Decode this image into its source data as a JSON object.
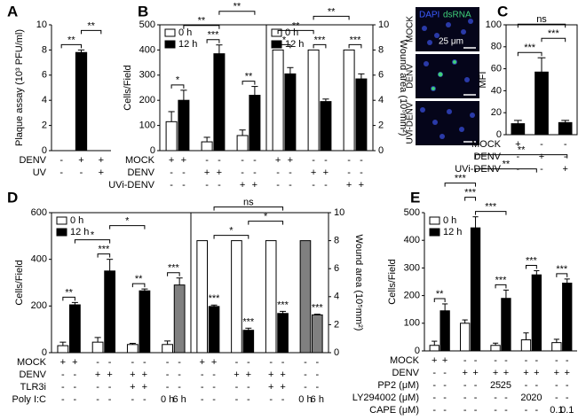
{
  "chart_data": [
    {
      "panel": "A",
      "type": "bar",
      "y_label": "Plaque assay (10³ PFU/ml)",
      "ylim": [
        0,
        10
      ],
      "yticks": [
        0,
        2,
        4,
        6,
        8,
        10
      ],
      "series": [
        {
          "color": "#000000",
          "values": [
            0,
            7.8,
            0
          ],
          "errors": [
            0,
            0.2,
            0
          ]
        }
      ],
      "conditions": [
        {
          "name": "DENV",
          "marks": [
            "-",
            "+",
            "+"
          ]
        },
        {
          "name": "UV",
          "marks": [
            "-",
            "-",
            "+"
          ]
        }
      ],
      "brackets": [
        {
          "text": "**",
          "between": [
            0,
            1
          ]
        },
        {
          "text": "**",
          "between": [
            1,
            2
          ]
        }
      ]
    },
    {
      "panel": "B",
      "type": "bar",
      "y_label": "Cells/Field",
      "ylim": [
        0,
        500
      ],
      "yticks": [
        0,
        100,
        200,
        300,
        400,
        500
      ],
      "frame": true,
      "legend": "upper left",
      "series": [
        {
          "name": "0 h",
          "color": "#ffffff",
          "values": [
            115,
            35,
            60
          ],
          "errors": [
            40,
            18,
            22
          ]
        },
        {
          "name": "12 h",
          "color": "#000000",
          "values": [
            200,
            385,
            220
          ],
          "errors": [
            40,
            35,
            35
          ]
        }
      ],
      "conditions": [
        {
          "name": "MOCK",
          "marks": [
            "+",
            "+",
            "-",
            "-",
            "-",
            "-"
          ]
        },
        {
          "name": "DENV",
          "marks": [
            "-",
            "-",
            "+",
            "+",
            "-",
            "-"
          ]
        },
        {
          "name": "UVi-DENV",
          "marks": [
            "-",
            "-",
            "-",
            "-",
            "+",
            "+"
          ]
        }
      ],
      "brackets": [
        {
          "text": "*",
          "between": [
            0,
            1
          ]
        },
        {
          "text": "***",
          "between": [
            2,
            3
          ]
        },
        {
          "text": "**",
          "between": [
            4,
            5
          ]
        },
        {
          "text": "**",
          "between": [
            1,
            3
          ]
        },
        {
          "text": "**",
          "between": [
            3,
            5
          ]
        }
      ]
    },
    {
      "type": "bar",
      "y_label": "Wound area (10⁵mm²)",
      "axis_side": "right",
      "ylim": [
        0,
        10
      ],
      "yticks": [
        0,
        2,
        4,
        6,
        8,
        10
      ],
      "frame": true,
      "legend": "upper left",
      "series": [
        {
          "name": "0 h",
          "color": "#ffffff",
          "values": [
            8,
            8,
            8
          ]
        },
        {
          "name": "12 h",
          "color": "#000000",
          "values": [
            6.1,
            3.9,
            5.7
          ],
          "errors": [
            0.5,
            0.2,
            0.4
          ]
        }
      ],
      "conditions": [
        {
          "marks": [
            "+",
            "+",
            "-",
            "-",
            "-",
            "-"
          ]
        },
        {
          "marks": [
            "-",
            "-",
            "+",
            "+",
            "-",
            "-"
          ]
        },
        {
          "marks": [
            "-",
            "-",
            "-",
            "-",
            "+",
            "+"
          ]
        }
      ],
      "brackets": [
        {
          "text": "*",
          "between": [
            0,
            1
          ]
        },
        {
          "text": "***",
          "between": [
            2,
            3
          ]
        },
        {
          "text": "***",
          "between": [
            4,
            5
          ]
        },
        {
          "text": "**",
          "between": [
            0,
            2
          ]
        },
        {
          "text": "**",
          "between": [
            2,
            4
          ]
        }
      ]
    },
    {
      "panel": "C",
      "type": "bar",
      "y_label": "MFI",
      "ylim": [
        0,
        100
      ],
      "yticks": [
        0,
        20,
        40,
        60,
        80,
        100
      ],
      "frame": true,
      "image_channels": [
        "DAPI",
        "dsRNA"
      ],
      "image_rows": [
        "MOCK",
        "DENV",
        "UVi-DENV"
      ],
      "scale_bar": "25 μm",
      "series": [
        {
          "color": "#000000",
          "values": [
            10,
            57,
            11
          ],
          "errors": [
            3,
            13,
            2
          ]
        }
      ],
      "conditions": [
        {
          "name": "MOCK",
          "marks": [
            "+",
            "-",
            "-"
          ]
        },
        {
          "name": "DENV",
          "marks": [
            "-",
            "+",
            "-"
          ]
        },
        {
          "name": "UVi-DENV",
          "marks": [
            "-",
            "-",
            "+"
          ]
        }
      ],
      "brackets": [
        {
          "text": "***",
          "between": [
            0,
            1
          ]
        },
        {
          "text": "***",
          "between": [
            1,
            2
          ]
        },
        {
          "text": "ns",
          "between": [
            0,
            2
          ]
        }
      ]
    },
    {
      "panel": "D",
      "type": "bar",
      "y_label": "Cells/Field",
      "ylim": [
        0,
        600
      ],
      "yticks": [
        0,
        200,
        400,
        600
      ],
      "frame": true,
      "legend": "upper left",
      "series": [
        {
          "name": "0 h",
          "color": "#ffffff",
          "values": [
            30,
            45,
            35,
            35
          ],
          "errors": [
            15,
            20,
            5,
            15
          ]
        },
        {
          "name": "12 h",
          "color": "#000000",
          "colors": [
            "#000000",
            "#000000",
            "#000000",
            "#808080"
          ],
          "values": [
            205,
            350,
            265,
            290
          ],
          "errors": [
            10,
            50,
            8,
            30
          ]
        }
      ],
      "conditions": [
        {
          "name": "MOCK",
          "marks": [
            "+",
            "+",
            "-",
            "-",
            "-",
            "-",
            "-",
            "-"
          ]
        },
        {
          "name": "DENV",
          "marks": [
            "-",
            "-",
            "+",
            "+",
            "+",
            "+",
            "-",
            "-"
          ]
        },
        {
          "name": "TLR3i",
          "marks": [
            "-",
            "-",
            "-",
            "-",
            "+",
            "+",
            "-",
            "-"
          ]
        },
        {
          "name": "Poly I:C",
          "marks": [
            "-",
            "-",
            "-",
            "-",
            "-",
            "-",
            "0 h",
            "6 h"
          ]
        }
      ],
      "brackets": [
        {
          "text": "**",
          "between": [
            0,
            1
          ]
        },
        {
          "text": "***",
          "between": [
            2,
            3
          ]
        },
        {
          "text": "**",
          "between": [
            4,
            5
          ]
        },
        {
          "text": "***",
          "between": [
            6,
            7
          ]
        },
        {
          "text": "*",
          "between": [
            1,
            3
          ]
        },
        {
          "text": "*",
          "between": [
            3,
            5
          ]
        }
      ]
    },
    {
      "type": "bar",
      "y_label": "Wound area (10⁵mm²)",
      "axis_side": "right",
      "ylim": [
        0,
        10
      ],
      "yticks": [
        0,
        2,
        4,
        6,
        8,
        10
      ],
      "frame": true,
      "series": [
        {
          "color": "#ffffff",
          "colors": [
            "#ffffff",
            "#ffffff",
            "#ffffff",
            "#808080"
          ],
          "values": [
            8,
            8,
            8,
            8
          ]
        },
        {
          "color": "#000000",
          "colors": [
            "#000000",
            "#000000",
            "#000000",
            "#808080"
          ],
          "values": [
            3.3,
            1.6,
            2.8,
            2.7
          ],
          "errors": [
            0.1,
            0.15,
            0.15,
            0.05
          ]
        }
      ],
      "conditions": [
        {
          "marks": [
            "+",
            "+",
            "-",
            "-",
            "-",
            "-",
            "-",
            "-"
          ]
        },
        {
          "marks": [
            "-",
            "-",
            "+",
            "+",
            "+",
            "+",
            "-",
            "-"
          ]
        },
        {
          "marks": [
            "-",
            "-",
            "-",
            "-",
            "+",
            "+",
            "-",
            "-"
          ]
        },
        {
          "marks": [
            "-",
            "-",
            "-",
            "-",
            "-",
            "-",
            "0 h",
            "6 h"
          ]
        }
      ],
      "brackets": [
        {
          "text": "***",
          "between": [
            1,
            1
          ]
        },
        {
          "text": "***",
          "between": [
            3,
            3
          ]
        },
        {
          "text": "***",
          "between": [
            5,
            5
          ]
        },
        {
          "text": "***",
          "between": [
            7,
            7
          ]
        },
        {
          "text": "*",
          "between": [
            1,
            3
          ]
        },
        {
          "text": "*",
          "between": [
            3,
            5
          ]
        },
        {
          "text": "ns",
          "between": [
            1,
            5
          ]
        }
      ]
    },
    {
      "panel": "E",
      "type": "bar",
      "y_label": "Cells/Field",
      "ylim": [
        0,
        500
      ],
      "yticks": [
        0,
        100,
        200,
        300,
        400,
        500
      ],
      "legend": "upper left",
      "series": [
        {
          "name": "0 h",
          "color": "#ffffff",
          "values": [
            20,
            100,
            20,
            40,
            30
          ],
          "errors": [
            15,
            12,
            8,
            25,
            12
          ]
        },
        {
          "name": "12 h",
          "color": "#000000",
          "values": [
            145,
            445,
            190,
            275,
            245
          ],
          "errors": [
            25,
            40,
            30,
            15,
            15
          ]
        }
      ],
      "conditions": [
        {
          "name": "MOCK",
          "marks": [
            "+",
            "+",
            "-",
            "-",
            "-",
            "-",
            "-",
            "-",
            "-",
            "-"
          ]
        },
        {
          "name": "DENV",
          "marks": [
            "-",
            "-",
            "+",
            "+",
            "+",
            "+",
            "+",
            "+",
            "+",
            "+"
          ]
        },
        {
          "name": "PP2 (μM)",
          "marks": [
            "-",
            "-",
            "-",
            "-",
            "25",
            "25",
            "-",
            "-",
            "-",
            "-"
          ]
        },
        {
          "name": "LY294002 (μM)",
          "marks": [
            "-",
            "-",
            "-",
            "-",
            "-",
            "-",
            "20",
            "20",
            "-",
            "-"
          ]
        },
        {
          "name": "CAPE (μM)",
          "marks": [
            "-",
            "-",
            "-",
            "-",
            "-",
            "-",
            "-",
            "-",
            "0.1",
            "0.1"
          ]
        }
      ],
      "brackets": [
        {
          "text": "**",
          "between": [
            0,
            1
          ]
        },
        {
          "text": "***",
          "between": [
            4,
            5
          ]
        },
        {
          "text": "***",
          "between": [
            6,
            7
          ]
        },
        {
          "text": "***",
          "between": [
            8,
            9
          ]
        },
        {
          "text": "***",
          "between": [
            3,
            5
          ]
        },
        {
          "text": "***",
          "between": [
            2,
            3
          ]
        },
        {
          "text": "***",
          "between": [
            1,
            3
          ]
        },
        {
          "text": "**",
          "between": [
            3,
            7
          ]
        },
        {
          "text": "**",
          "between": [
            3,
            9
          ]
        }
      ]
    }
  ]
}
